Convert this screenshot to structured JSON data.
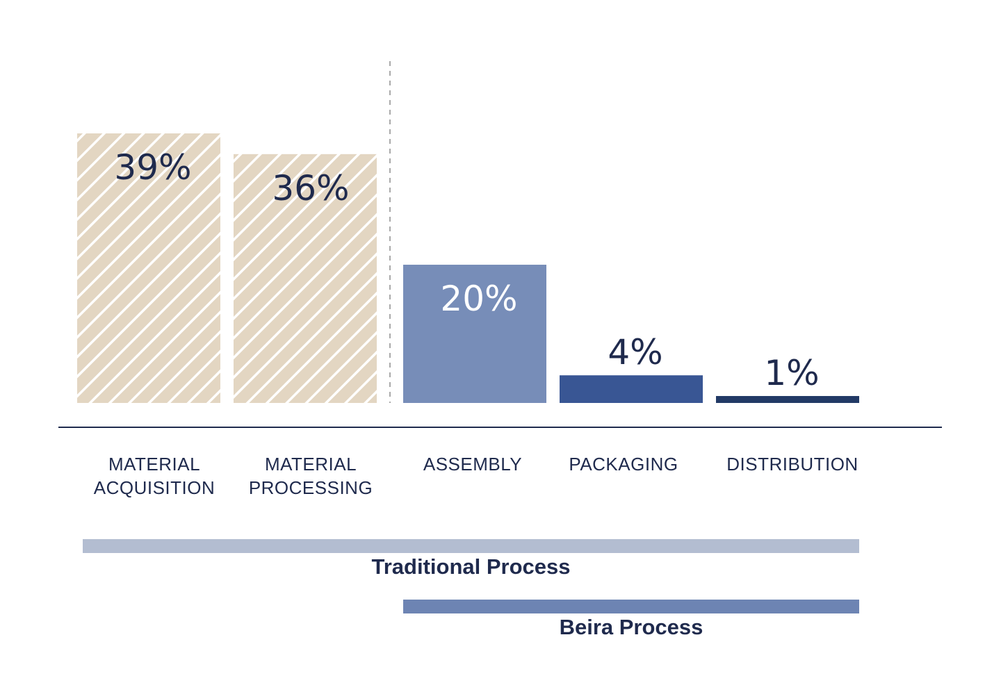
{
  "chart_data": {
    "type": "bar",
    "categories": [
      [
        "MATERIAL",
        "ACQUISITION"
      ],
      [
        "MATERIAL",
        "PROCESSING"
      ],
      [
        "ASSEMBLY"
      ],
      [
        "PACKAGING"
      ],
      [
        "DISTRIBUTION"
      ]
    ],
    "values": [
      39,
      36,
      20,
      4,
      1
    ],
    "value_labels": [
      "39%",
      "36%",
      "20%",
      "4%",
      "1%"
    ],
    "bar_fills": [
      "hatched",
      "hatched",
      "solid",
      "solid",
      "solid"
    ],
    "bar_colors": [
      "#e3d6c2",
      "#e3d6c2",
      "#778db8",
      "#395694",
      "#223a66"
    ],
    "label_colors": [
      "#1f2a4d",
      "#1f2a4d",
      "#ffffff",
      "#1f2a4d",
      "#1f2a4d"
    ],
    "divider": "dashed line between MATERIAL PROCESSING and ASSEMBLY",
    "grid": false,
    "ylim": [
      0,
      45
    ],
    "process_ranges": [
      {
        "name": "Traditional Process",
        "from": 0,
        "to": 4,
        "color": "#b3bdd1"
      },
      {
        "name": "Beira Process",
        "from": 2,
        "to": 4,
        "color": "#6d84b3"
      }
    ]
  }
}
